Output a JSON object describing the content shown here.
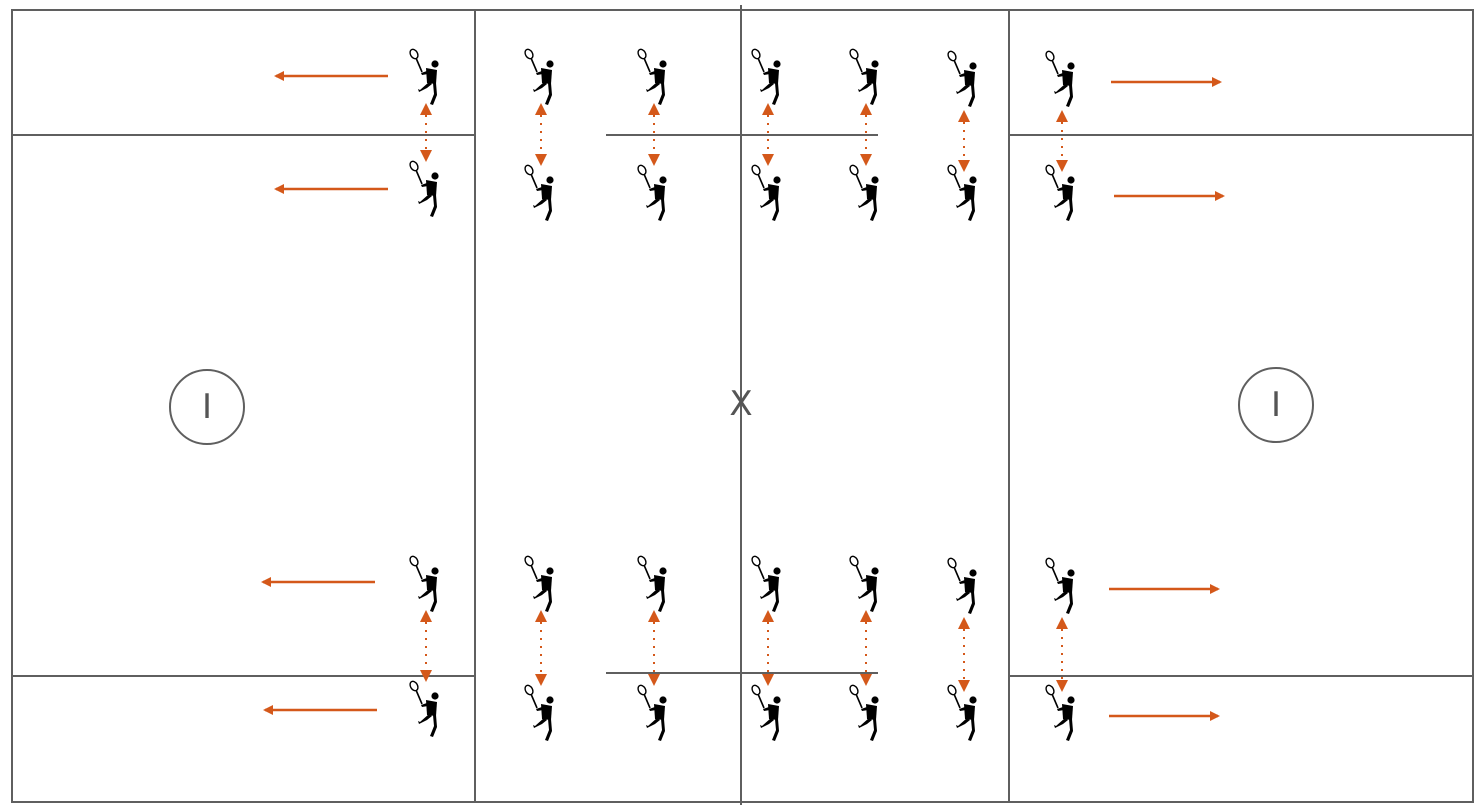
{
  "diagram": {
    "center_mark": "X",
    "left_crease_label": "I",
    "right_crease_label": "I",
    "colors": {
      "line": "#5f5f5f",
      "arrow": "#d4581a",
      "player": "#000000"
    },
    "player_icon": "lacrosse-player-icon",
    "rows_of_pairs": 2,
    "pairs_per_row": 7,
    "arrow_directions": [
      "left",
      "right"
    ]
  }
}
